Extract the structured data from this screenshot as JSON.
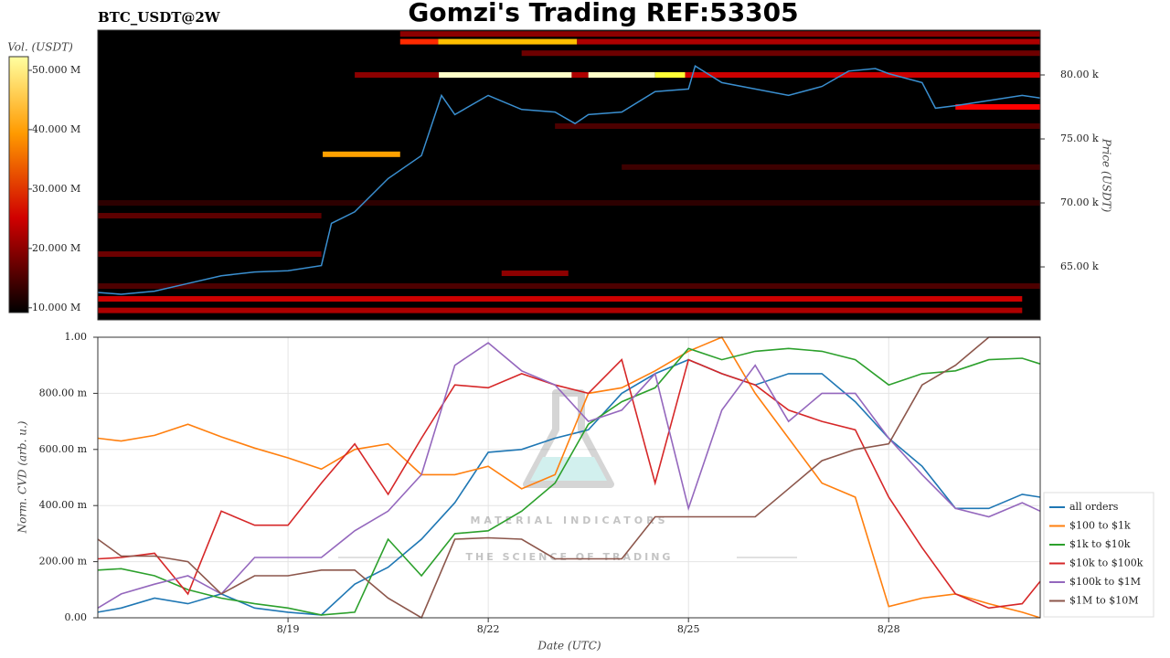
{
  "chart_data": [
    {
      "type": "heatmap",
      "title": "Gomzi's Trading REF:53305",
      "subtitle": "BTC_USDT@2W",
      "colorbar_label": "Vol. (USDT)",
      "y_label": "Price (USDT)",
      "xlim": [
        16.15,
        30.27
      ],
      "ylim": [
        60860,
        83500
      ],
      "yticks": [
        {
          "value": 65000,
          "label": "65.00 k"
        },
        {
          "value": 70000,
          "label": "70.00 k"
        },
        {
          "value": 75000,
          "label": "75.00 k"
        },
        {
          "value": 80000,
          "label": "80.00 k"
        }
      ],
      "clim": [
        9200000,
        52300000
      ],
      "cticks": [
        {
          "value": 10000000,
          "label": "10.000 M"
        },
        {
          "value": 20000000,
          "label": "20.000 M"
        },
        {
          "value": 30000000,
          "label": "30.000 M"
        },
        {
          "value": 40000000,
          "label": "40.000 M"
        },
        {
          "value": 50000000,
          "label": "50.000 M"
        }
      ],
      "bands": [
        {
          "price": 83200,
          "start": 20.68,
          "end": 30.27,
          "volume": 18000000
        },
        {
          "price": 82600,
          "start": 20.68,
          "end": 21.25,
          "volume": 28000000
        },
        {
          "price": 82600,
          "start": 21.25,
          "end": 23.33,
          "volume": 38000000
        },
        {
          "price": 82600,
          "start": 23.33,
          "end": 30.27,
          "volume": 20000000
        },
        {
          "price": 81700,
          "start": 22.5,
          "end": 30.27,
          "volume": 16000000
        },
        {
          "price": 80000,
          "start": 20.0,
          "end": 21.26,
          "volume": 18000000
        },
        {
          "price": 80000,
          "start": 21.26,
          "end": 23.25,
          "volume": 55000000
        },
        {
          "price": 80000,
          "start": 23.25,
          "end": 23.5,
          "volume": 20000000
        },
        {
          "price": 80000,
          "start": 23.5,
          "end": 24.5,
          "volume": 55000000
        },
        {
          "price": 80000,
          "start": 24.5,
          "end": 24.95,
          "volume": 45000000
        },
        {
          "price": 80000,
          "start": 24.95,
          "end": 30.27,
          "volume": 22000000
        },
        {
          "price": 77500,
          "start": 29.0,
          "end": 30.27,
          "volume": 25000000
        },
        {
          "price": 76000,
          "start": 23.0,
          "end": 30.27,
          "volume": 14000000
        },
        {
          "price": 73800,
          "start": 19.52,
          "end": 20.68,
          "volume": 36000000
        },
        {
          "price": 72800,
          "start": 24.0,
          "end": 30.27,
          "volume": 13000000
        },
        {
          "price": 70000,
          "start": 16.15,
          "end": 30.27,
          "volume": 12000000
        },
        {
          "price": 69000,
          "start": 16.15,
          "end": 19.5,
          "volume": 15000000
        },
        {
          "price": 66000,
          "start": 16.15,
          "end": 19.5,
          "volume": 16000000
        },
        {
          "price": 64500,
          "start": 22.2,
          "end": 23.2,
          "volume": 18000000
        },
        {
          "price": 63500,
          "start": 16.15,
          "end": 30.27,
          "volume": 14000000
        },
        {
          "price": 62500,
          "start": 16.15,
          "end": 30.0,
          "volume": 22000000
        },
        {
          "price": 61600,
          "start": 16.15,
          "end": 30.0,
          "volume": 20000000
        }
      ],
      "price": {
        "color": "#3a8fd0",
        "x": [
          16.15,
          16.5,
          17.0,
          17.5,
          18.0,
          18.5,
          19.0,
          19.5,
          19.65,
          20.0,
          20.5,
          21.0,
          21.3,
          21.5,
          22.0,
          22.5,
          23.0,
          23.3,
          23.5,
          24.0,
          24.5,
          25.0,
          25.1,
          25.5,
          26.0,
          26.5,
          27.0,
          27.4,
          27.8,
          28.0,
          28.5,
          28.7,
          29.0,
          29.5,
          30.0,
          30.27
        ],
        "values": [
          63000,
          62860,
          63100,
          63700,
          64300,
          64600,
          64700,
          65100,
          68400,
          69300,
          71900,
          73700,
          78400,
          76900,
          78400,
          77300,
          77100,
          76200,
          76900,
          77100,
          78700,
          78900,
          80700,
          79400,
          78900,
          78400,
          79100,
          80300,
          80500,
          80100,
          79400,
          77400,
          77600,
          78000,
          78400,
          78200
        ]
      }
    },
    {
      "type": "line",
      "x_label": "Date (UTC)",
      "y_label": "Norm. CVD (arb. u.)",
      "watermark": {
        "name": "MATERIAL INDICATORS",
        "tagline": "THE SCIENCE OF TRADING"
      },
      "xlim": [
        16.15,
        30.27
      ],
      "ylim": [
        0,
        1
      ],
      "xticks": [
        {
          "value": 19,
          "label": "8/19"
        },
        {
          "value": 22,
          "label": "8/22"
        },
        {
          "value": 25,
          "label": "8/25"
        },
        {
          "value": 28,
          "label": "8/28"
        }
      ],
      "yticks": [
        {
          "value": 0,
          "label": "0.00"
        },
        {
          "value": 0.2,
          "label": "200.00 m"
        },
        {
          "value": 0.4,
          "label": "400.00 m"
        },
        {
          "value": 0.6,
          "label": "600.00 m"
        },
        {
          "value": 0.8,
          "label": "800.00 m"
        },
        {
          "value": 1,
          "label": "1.00"
        }
      ],
      "grid": true,
      "legend": "lower-right",
      "x": [
        16.15,
        16.5,
        17.0,
        17.5,
        18.0,
        18.5,
        19.0,
        19.5,
        20.0,
        20.5,
        21.0,
        21.5,
        22.0,
        22.5,
        23.0,
        23.5,
        24.0,
        24.5,
        25.0,
        25.5,
        26.0,
        26.5,
        27.0,
        27.5,
        28.0,
        28.5,
        29.0,
        29.5,
        30.0,
        30.27
      ],
      "series": [
        {
          "name": "all orders",
          "color": "#1f77b4",
          "values": [
            0.02,
            0.035,
            0.07,
            0.05,
            0.085,
            0.035,
            0.02,
            0.01,
            0.12,
            0.18,
            0.28,
            0.41,
            0.59,
            0.6,
            0.64,
            0.67,
            0.8,
            0.87,
            0.92,
            0.87,
            0.83,
            0.87,
            0.87,
            0.77,
            0.64,
            0.54,
            0.39,
            0.39,
            0.44,
            0.43
          ]
        },
        {
          "name": "$100 to $1k",
          "color": "#ff7f0e",
          "values": [
            0.64,
            0.63,
            0.65,
            0.69,
            0.645,
            0.605,
            0.57,
            0.53,
            0.6,
            0.62,
            0.51,
            0.51,
            0.54,
            0.46,
            0.51,
            0.8,
            0.82,
            0.88,
            0.95,
            1.0,
            0.8,
            0.64,
            0.48,
            0.43,
            0.04,
            0.07,
            0.085,
            0.05,
            0.02,
            0.0
          ]
        },
        {
          "name": "$1k to $10k",
          "color": "#2ca02c",
          "values": [
            0.17,
            0.175,
            0.15,
            0.1,
            0.07,
            0.05,
            0.035,
            0.01,
            0.02,
            0.28,
            0.15,
            0.3,
            0.31,
            0.38,
            0.48,
            0.69,
            0.77,
            0.82,
            0.96,
            0.92,
            0.95,
            0.96,
            0.95,
            0.92,
            0.83,
            0.87,
            0.88,
            0.92,
            0.925,
            0.905
          ]
        },
        {
          "name": "$10k to $100k",
          "color": "#d62728",
          "values": [
            0.21,
            0.215,
            0.23,
            0.085,
            0.38,
            0.33,
            0.33,
            0.48,
            0.62,
            0.44,
            0.64,
            0.83,
            0.82,
            0.87,
            0.83,
            0.8,
            0.92,
            0.48,
            0.92,
            0.87,
            0.83,
            0.74,
            0.7,
            0.67,
            0.43,
            0.25,
            0.085,
            0.035,
            0.05,
            0.13
          ]
        },
        {
          "name": "$100k to $1M",
          "color": "#9467bd",
          "values": [
            0.035,
            0.085,
            0.12,
            0.15,
            0.085,
            0.215,
            0.215,
            0.215,
            0.31,
            0.38,
            0.51,
            0.9,
            0.98,
            0.88,
            0.83,
            0.7,
            0.74,
            0.87,
            0.39,
            0.74,
            0.9,
            0.7,
            0.8,
            0.8,
            0.64,
            0.51,
            0.39,
            0.36,
            0.41,
            0.38
          ]
        },
        {
          "name": "$1M to $10M",
          "color": "#8c564b",
          "values": [
            0.28,
            0.22,
            0.22,
            0.2,
            0.085,
            0.15,
            0.15,
            0.17,
            0.17,
            0.07,
            0.0,
            0.28,
            0.285,
            0.28,
            0.21,
            0.21,
            0.21,
            0.36,
            0.36,
            0.36,
            0.36,
            0.46,
            0.56,
            0.6,
            0.62,
            0.83,
            0.9,
            1.0,
            1.0,
            1.0
          ]
        }
      ]
    }
  ]
}
